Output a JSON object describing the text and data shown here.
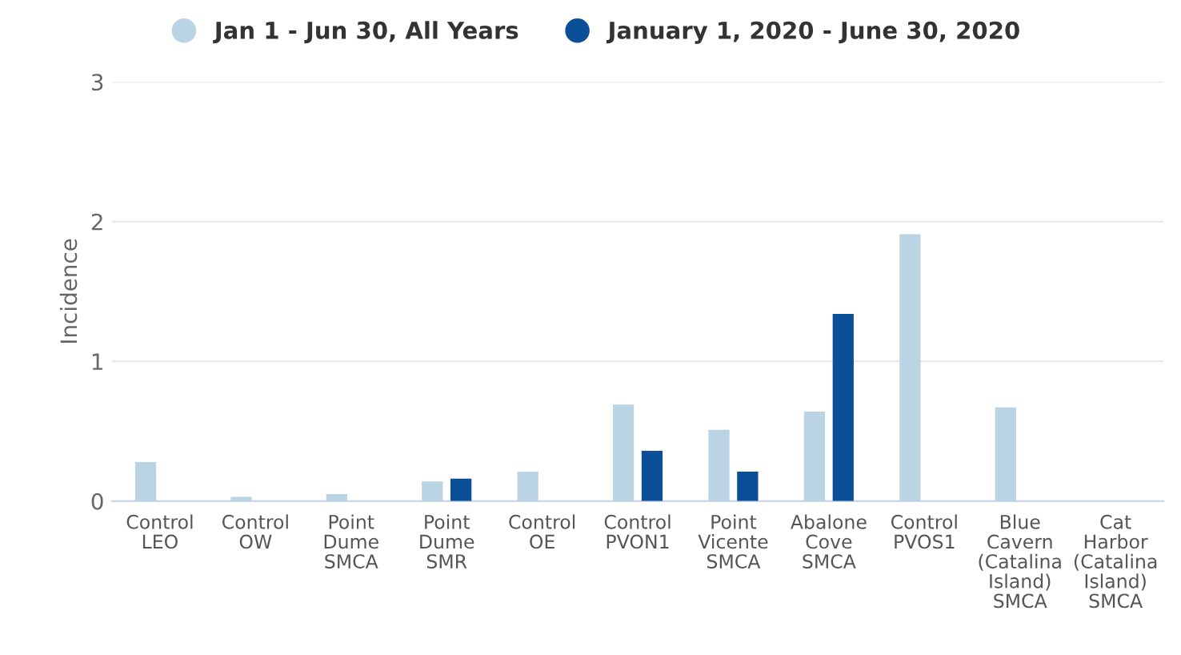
{
  "chart_data": {
    "type": "bar",
    "categories": [
      "Control\nLEO",
      "Control\nOW",
      "Point\nDume\nSMCA",
      "Point\nDume\nSMR",
      "Control\nOE",
      "Control\nPVON1",
      "Point\nVicente\nSMCA",
      "Abalone\nCove\nSMCA",
      "Control\nPVOS1",
      "Blue\nCavern\n(Catalina\nIsland)\nSMCA",
      "Cat\nHarbor\n(Catalina\nIsland)\nSMCA"
    ],
    "series": [
      {
        "name": "Jan 1 - Jun 30, All Years",
        "color": "#bad4e4",
        "values": [
          0.28,
          0.03,
          0.05,
          0.14,
          0.21,
          0.69,
          0.51,
          0.64,
          1.91,
          0.67,
          0
        ]
      },
      {
        "name": "January 1, 2020 - June 30, 2020",
        "color": "#0b4f99",
        "values": [
          0,
          0,
          0,
          0.16,
          0,
          0.36,
          0.21,
          1.34,
          0,
          0,
          0
        ]
      }
    ],
    "ylabel": "Incidence",
    "ylim": [
      0,
      3
    ],
    "yticks": [
      0,
      1,
      2,
      3
    ],
    "grid": "y",
    "legend": "top"
  }
}
